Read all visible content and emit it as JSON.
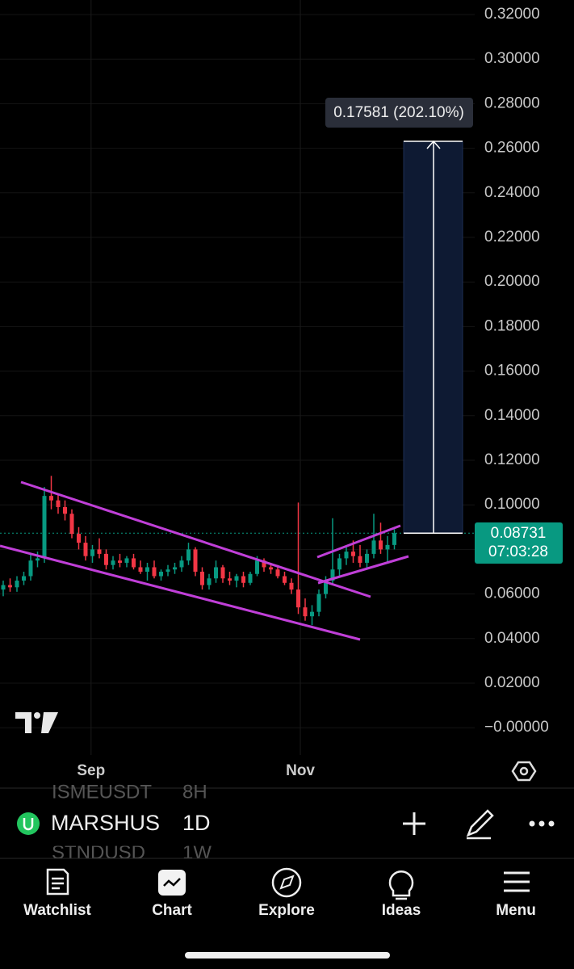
{
  "chart_data": {
    "type": "candlestick",
    "ylim": [
      -0.01225,
      0.32652
    ],
    "yticks": [
      {
        "value": 0.32,
        "label": "0.32000"
      },
      {
        "value": 0.3,
        "label": "0.30000"
      },
      {
        "value": 0.28,
        "label": "0.28000"
      },
      {
        "value": 0.26,
        "label": "0.26000"
      },
      {
        "value": 0.24,
        "label": "0.24000"
      },
      {
        "value": 0.22,
        "label": "0.22000"
      },
      {
        "value": 0.2,
        "label": "0.20000"
      },
      {
        "value": 0.18,
        "label": "0.18000"
      },
      {
        "value": 0.16,
        "label": "0.16000"
      },
      {
        "value": 0.14,
        "label": "0.14000"
      },
      {
        "value": 0.12,
        "label": "0.12000"
      },
      {
        "value": 0.1,
        "label": "0.10000"
      },
      {
        "value": 0.08,
        "label": "0.08000"
      },
      {
        "value": 0.06,
        "label": "0.06000"
      },
      {
        "value": 0.04,
        "label": "0.04000"
      },
      {
        "value": 0.02,
        "label": "0.02000"
      },
      {
        "value": 0,
        "label": "−0.00000"
      }
    ],
    "xticks": [
      {
        "value": 12.8,
        "label": "Sep"
      },
      {
        "value": 43.3,
        "label": "Nov"
      }
    ],
    "up_color": "#089981",
    "down_color": "#f23645",
    "candles": [
      [
        0.062,
        0.066,
        0.059,
        0.064
      ],
      [
        0.064,
        0.067,
        0.061,
        0.063
      ],
      [
        0.063,
        0.068,
        0.061,
        0.066
      ],
      [
        0.066,
        0.07,
        0.064,
        0.068
      ],
      [
        0.068,
        0.078,
        0.066,
        0.075
      ],
      [
        0.075,
        0.079,
        0.072,
        0.076
      ],
      [
        0.076,
        0.108,
        0.074,
        0.104
      ],
      [
        0.104,
        0.113,
        0.098,
        0.102
      ],
      [
        0.102,
        0.105,
        0.096,
        0.099
      ],
      [
        0.099,
        0.102,
        0.093,
        0.096
      ],
      [
        0.096,
        0.098,
        0.085,
        0.087
      ],
      [
        0.087,
        0.09,
        0.08,
        0.083
      ],
      [
        0.083,
        0.086,
        0.075,
        0.077
      ],
      [
        0.077,
        0.082,
        0.074,
        0.08
      ],
      [
        0.08,
        0.085,
        0.076,
        0.078
      ],
      [
        0.078,
        0.08,
        0.071,
        0.073
      ],
      [
        0.073,
        0.077,
        0.071,
        0.075
      ],
      [
        0.075,
        0.078,
        0.072,
        0.074
      ],
      [
        0.074,
        0.077,
        0.072,
        0.076
      ],
      [
        0.076,
        0.078,
        0.071,
        0.072
      ],
      [
        0.072,
        0.075,
        0.069,
        0.07
      ],
      [
        0.07,
        0.074,
        0.066,
        0.072
      ],
      [
        0.072,
        0.075,
        0.067,
        0.068
      ],
      [
        0.068,
        0.071,
        0.066,
        0.07
      ],
      [
        0.07,
        0.073,
        0.068,
        0.071
      ],
      [
        0.071,
        0.074,
        0.069,
        0.072
      ],
      [
        0.072,
        0.077,
        0.07,
        0.075
      ],
      [
        0.075,
        0.083,
        0.073,
        0.08
      ],
      [
        0.08,
        0.081,
        0.068,
        0.07
      ],
      [
        0.07,
        0.072,
        0.062,
        0.064
      ],
      [
        0.064,
        0.069,
        0.062,
        0.067
      ],
      [
        0.067,
        0.075,
        0.065,
        0.072
      ],
      [
        0.072,
        0.073,
        0.065,
        0.067
      ],
      [
        0.067,
        0.07,
        0.064,
        0.066
      ],
      [
        0.066,
        0.069,
        0.063,
        0.068
      ],
      [
        0.068,
        0.07,
        0.063,
        0.065
      ],
      [
        0.065,
        0.07,
        0.064,
        0.069
      ],
      [
        0.069,
        0.077,
        0.068,
        0.075
      ],
      [
        0.075,
        0.076,
        0.07,
        0.072
      ],
      [
        0.072,
        0.074,
        0.069,
        0.071
      ],
      [
        0.071,
        0.073,
        0.067,
        0.068
      ],
      [
        0.068,
        0.07,
        0.064,
        0.065
      ],
      [
        0.065,
        0.067,
        0.06,
        0.062
      ],
      [
        0.062,
        0.101,
        0.051,
        0.054
      ],
      [
        0.054,
        0.058,
        0.048,
        0.05
      ],
      [
        0.05,
        0.055,
        0.046,
        0.052
      ],
      [
        0.052,
        0.062,
        0.05,
        0.06
      ],
      [
        0.06,
        0.068,
        0.058,
        0.066
      ],
      [
        0.066,
        0.094,
        0.064,
        0.071
      ],
      [
        0.071,
        0.078,
        0.068,
        0.076
      ],
      [
        0.076,
        0.081,
        0.073,
        0.079
      ],
      [
        0.079,
        0.084,
        0.074,
        0.077
      ],
      [
        0.077,
        0.082,
        0.072,
        0.074
      ],
      [
        0.074,
        0.08,
        0.071,
        0.078
      ],
      [
        0.078,
        0.096,
        0.076,
        0.084
      ],
      [
        0.084,
        0.092,
        0.078,
        0.08
      ],
      [
        0.08,
        0.086,
        0.074,
        0.082
      ],
      [
        0.082,
        0.089,
        0.08,
        0.08731
      ]
    ],
    "last_price": 0.08731,
    "countdown": "07:03:28",
    "measure": {
      "change": 0.17581,
      "label": "0.17581 (202.10%)"
    }
  },
  "symbol_bar": {
    "symbol": "MARSHUS",
    "interval": "1D",
    "prev_symbol": "ISMEUSDT",
    "prev_interval": "8H",
    "next_symbol": "STNDUSD",
    "next_interval": "1W"
  },
  "tabs": [
    "Watchlist",
    "Chart",
    "Explore",
    "Ideas",
    "Menu"
  ]
}
